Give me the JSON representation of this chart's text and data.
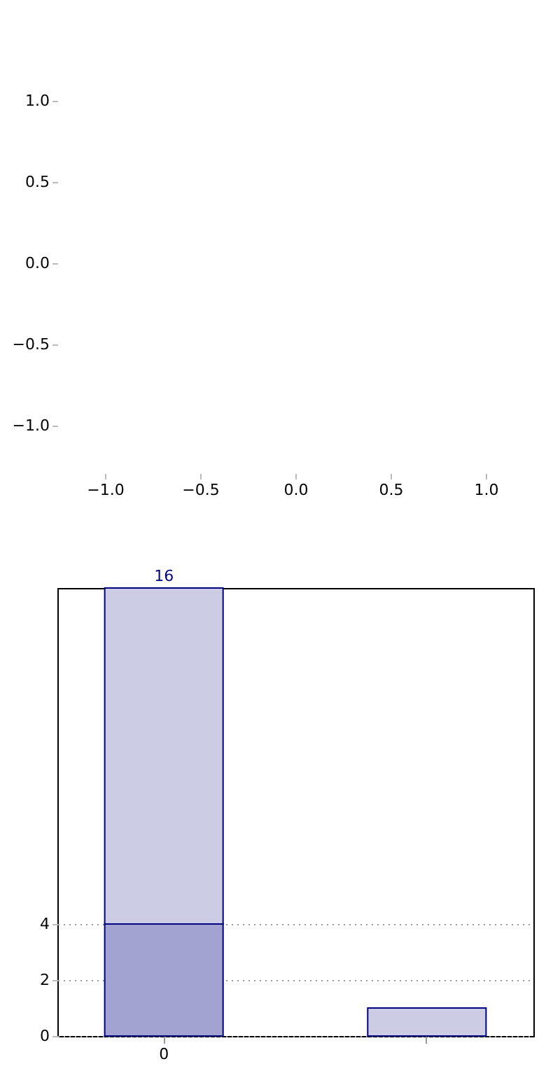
{
  "chart_data": [
    {
      "type": "scatter",
      "xlim": [
        -1,
        1
      ],
      "ylim": [
        -1,
        1
      ],
      "xticks": [
        {
          "value": -1,
          "label": "−1.0"
        },
        {
          "value": -0.5,
          "label": "−0.5"
        },
        {
          "value": 0,
          "label": "0.0"
        },
        {
          "value": 0.5,
          "label": "0.5"
        },
        {
          "value": 1,
          "label": "1.0"
        }
      ],
      "yticks": [
        {
          "value": -1,
          "label": "−1.0"
        },
        {
          "value": -0.5,
          "label": "−0.5"
        },
        {
          "value": 0,
          "label": "0.0"
        },
        {
          "value": 0.5,
          "label": "0.5"
        },
        {
          "value": 1,
          "label": "1.0"
        }
      ]
    },
    {
      "type": "bar",
      "categories": [
        "0",
        null
      ],
      "stacked": true,
      "series": [
        {
          "color": "#a2a3d1",
          "values": [
            4,
            null
          ]
        },
        {
          "color": "#cccce4",
          "values": [
            12,
            1
          ]
        }
      ],
      "totals": [
        "16",
        null
      ],
      "ylim": [
        0,
        16
      ],
      "yticks": [
        0,
        2,
        4
      ],
      "grid": "y"
    }
  ]
}
